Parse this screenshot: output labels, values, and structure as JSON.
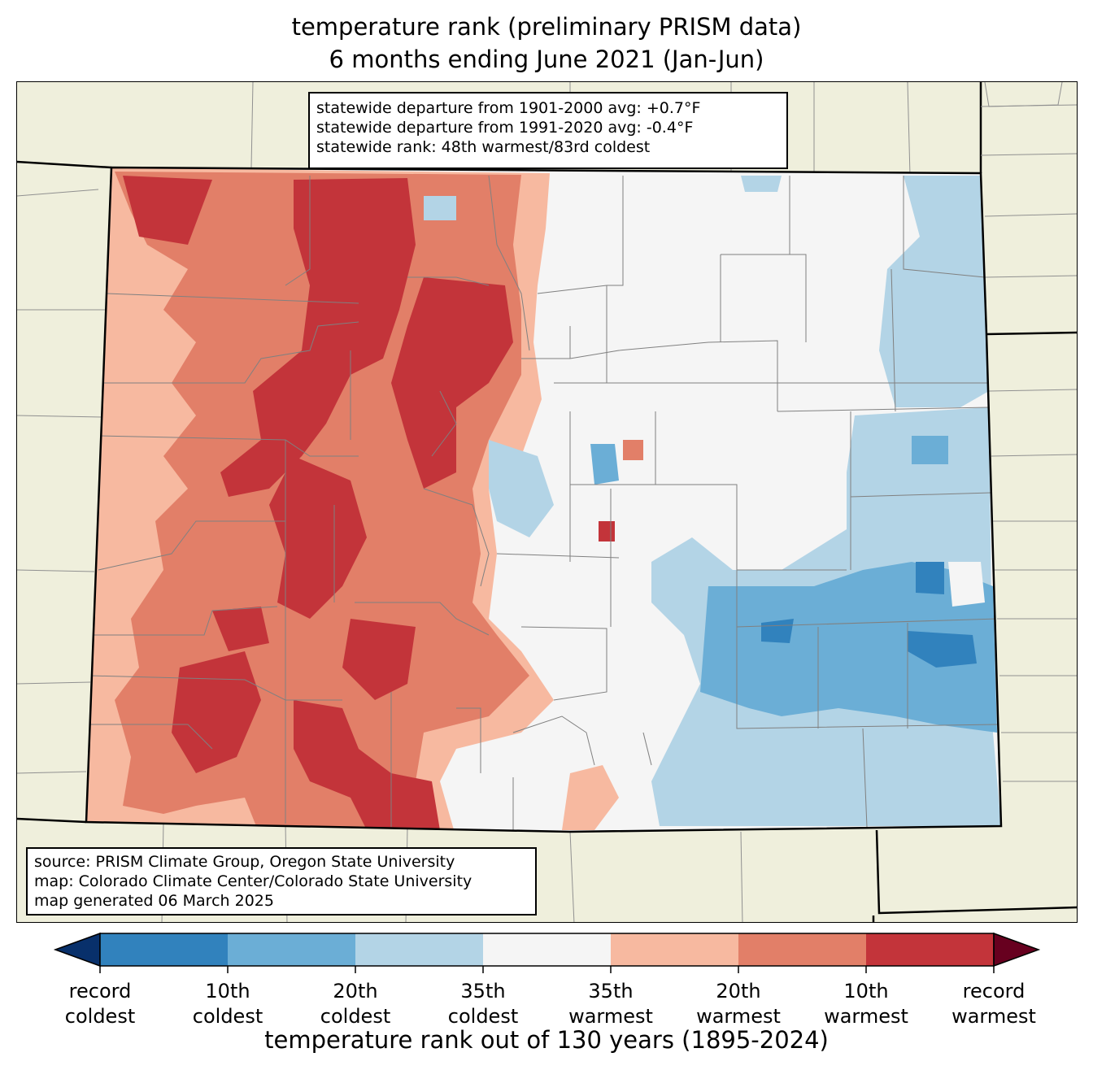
{
  "title": {
    "line1": "temperature rank (preliminary PRISM data)",
    "line2": "6 months ending June 2021 (Jan-Jun)"
  },
  "stats_box": {
    "line1": "statewide departure from 1901-2000 avg: +0.7°F",
    "line2": "statewide departure from 1991-2020 avg: -0.4°F",
    "line3": "statewide rank: 48th warmest/83rd coldest"
  },
  "source_box": {
    "line1": "source: PRISM Climate Group, Oregon State University",
    "line2": "map: Colorado Climate Center/Colorado State University",
    "line3": "map generated 06 March 2025"
  },
  "colorbar": {
    "title": "temperature rank out of 130 years (1895-2024)",
    "ticks": [
      {
        "top": "record",
        "bottom": "coldest"
      },
      {
        "top": "10th",
        "bottom": "coldest"
      },
      {
        "top": "20th",
        "bottom": "coldest"
      },
      {
        "top": "35th",
        "bottom": "coldest"
      },
      {
        "top": "35th",
        "bottom": "warmest"
      },
      {
        "top": "20th",
        "bottom": "warmest"
      },
      {
        "top": "10th",
        "bottom": "warmest"
      },
      {
        "top": "record",
        "bottom": "warmest"
      }
    ],
    "colors": {
      "below_record_coldest": "#08306b",
      "record_to_10th_coldest": "#3182bd",
      "10th_to_20th_coldest": "#6baed6",
      "20th_to_35th_coldest": "#b3d4e6",
      "near_normal": "#f5f5f5",
      "35th_to_20th_warmest": "#f7b9a0",
      "20th_to_10th_warmest": "#e27f68",
      "10th_to_record_warmest": "#c3343a",
      "above_record_warmest": "#67001f"
    }
  },
  "colors": {
    "background": "#efefdc",
    "state_border": "#000000",
    "county_border": "#808080"
  }
}
